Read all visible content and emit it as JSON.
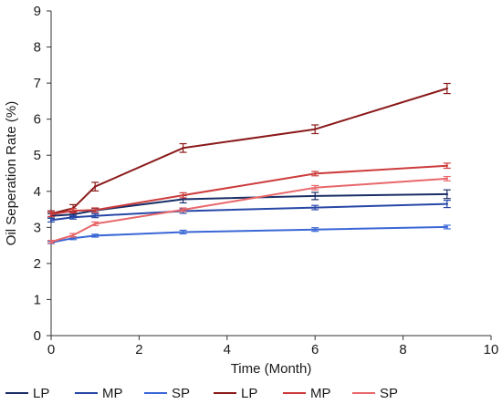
{
  "chart_data": {
    "type": "line",
    "xlabel": "Time (Month)",
    "ylabel": "Oil Seperation Rate (%)",
    "xlim": [
      0,
      10
    ],
    "ylim": [
      0,
      9
    ],
    "xticks": [
      0,
      2,
      4,
      6,
      8,
      10
    ],
    "yticks": [
      0,
      1,
      2,
      3,
      4,
      5,
      6,
      7,
      8,
      9
    ],
    "grid": false,
    "legend_position": "bottom",
    "x": [
      0,
      0.5,
      1,
      3,
      6,
      9
    ],
    "series": [
      {
        "name": "LP",
        "color": "#1a2f66",
        "values": [
          3.32,
          3.36,
          3.47,
          3.78,
          3.87,
          3.92
        ],
        "errors": [
          0.06,
          0.06,
          0.06,
          0.1,
          0.1,
          0.12
        ]
      },
      {
        "name": "MP",
        "color": "#2747a6",
        "values": [
          3.2,
          3.28,
          3.32,
          3.45,
          3.55,
          3.65
        ],
        "errors": [
          0.05,
          0.05,
          0.05,
          0.06,
          0.06,
          0.1
        ]
      },
      {
        "name": "SP",
        "color": "#3a67d6",
        "values": [
          2.58,
          2.7,
          2.77,
          2.87,
          2.94,
          3.01
        ],
        "errors": [
          0.03,
          0.04,
          0.04,
          0.05,
          0.05,
          0.05
        ]
      },
      {
        "name": "LP",
        "color": "#8b1a1a",
        "values": [
          3.38,
          3.53,
          4.13,
          5.2,
          5.72,
          6.85
        ],
        "errors": [
          0.08,
          0.1,
          0.12,
          0.12,
          0.12,
          0.14
        ]
      },
      {
        "name": "MP",
        "color": "#cd3b3b",
        "values": [
          3.36,
          3.46,
          3.48,
          3.89,
          4.49,
          4.71
        ],
        "errors": [
          0.06,
          0.06,
          0.06,
          0.07,
          0.06,
          0.07
        ]
      },
      {
        "name": "SP",
        "color": "#e8676a",
        "values": [
          2.6,
          2.78,
          3.1,
          3.49,
          4.1,
          4.35
        ],
        "errors": [
          0.04,
          0.05,
          0.05,
          0.05,
          0.06,
          0.06
        ]
      }
    ]
  }
}
